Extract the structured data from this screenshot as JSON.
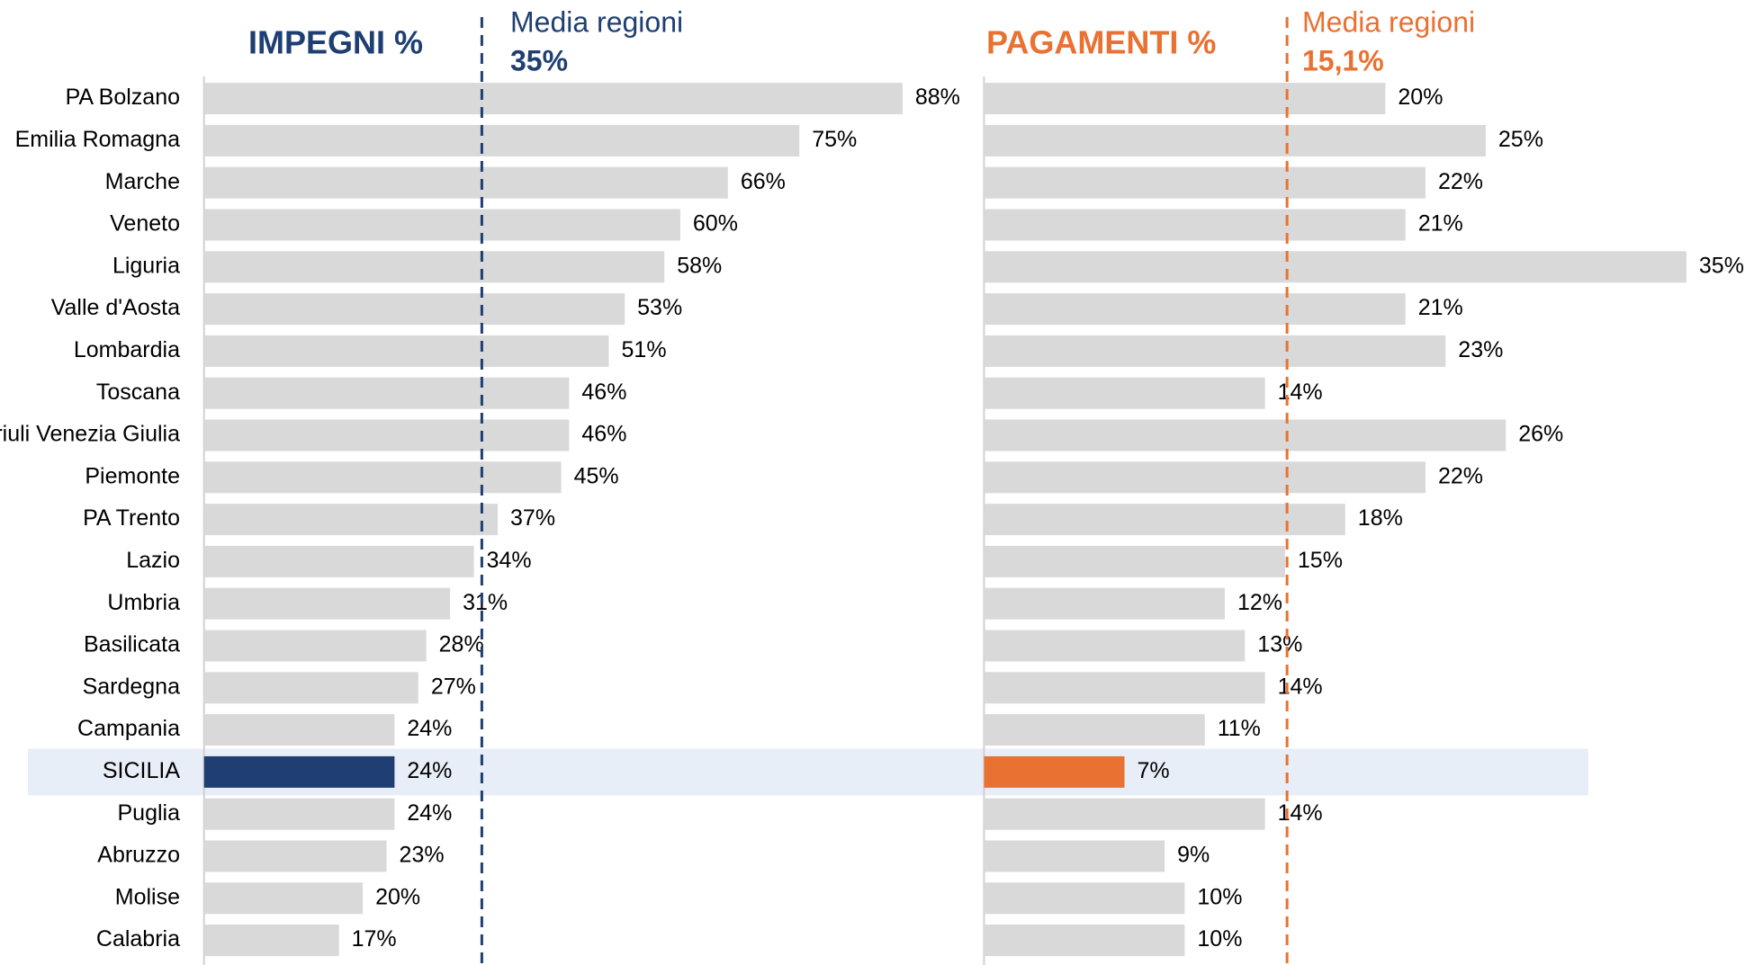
{
  "chart_data": [
    {
      "type": "bar",
      "orientation": "horizontal",
      "title": "IMPEGNI %",
      "categories": [
        "PA Bolzano",
        "Emilia Romagna",
        "Marche",
        "Veneto",
        "Liguria",
        "Valle d'Aosta",
        "Lombardia",
        "Toscana",
        "Friuli Venezia Giulia",
        "Piemonte",
        "PA Trento",
        "Lazio",
        "Umbria",
        "Basilicata",
        "Sardegna",
        "Campania",
        "SICILIA",
        "Puglia",
        "Abruzzo",
        "Molise",
        "Calabria"
      ],
      "values": [
        88,
        75,
        66,
        60,
        58,
        53,
        51,
        46,
        46,
        45,
        37,
        34,
        31,
        28,
        27,
        24,
        24,
        24,
        23,
        20,
        17
      ],
      "value_labels": [
        "88%",
        "75%",
        "66%",
        "60%",
        "58%",
        "53%",
        "51%",
        "46%",
        "46%",
        "45%",
        "37%",
        "34%",
        "31%",
        "28%",
        "27%",
        "24%",
        "24%",
        "24%",
        "23%",
        "20%",
        "17%"
      ],
      "color": "#d9d9d9",
      "highlight": "SICILIA",
      "highlight_color": "#1f3f73",
      "accent_color": "#1f3f73",
      "xlim": [
        0,
        100
      ],
      "reference": {
        "value": 35,
        "label": "Media regioni",
        "value_label": "35%"
      }
    },
    {
      "type": "bar",
      "orientation": "horizontal",
      "title": "PAGAMENTI %",
      "values": [
        20,
        25,
        22,
        21,
        35,
        21,
        23,
        14,
        26,
        22,
        18,
        15,
        12,
        13,
        14,
        11,
        7,
        14,
        9,
        10,
        10
      ],
      "value_labels": [
        "20%",
        "25%",
        "22%",
        "21%",
        "35%",
        "21%",
        "23%",
        "14%",
        "26%",
        "22%",
        "18%",
        "15%",
        "12%",
        "13%",
        "14%",
        "11%",
        "7%",
        "14%",
        "9%",
        "10%",
        "10%"
      ],
      "color": "#d9d9d9",
      "highlight_color": "#e97132",
      "accent_color": "#e97132",
      "xlim": [
        0,
        40
      ],
      "reference": {
        "value": 15.1,
        "label": "Media regioni",
        "value_label": "15,1%"
      }
    }
  ]
}
